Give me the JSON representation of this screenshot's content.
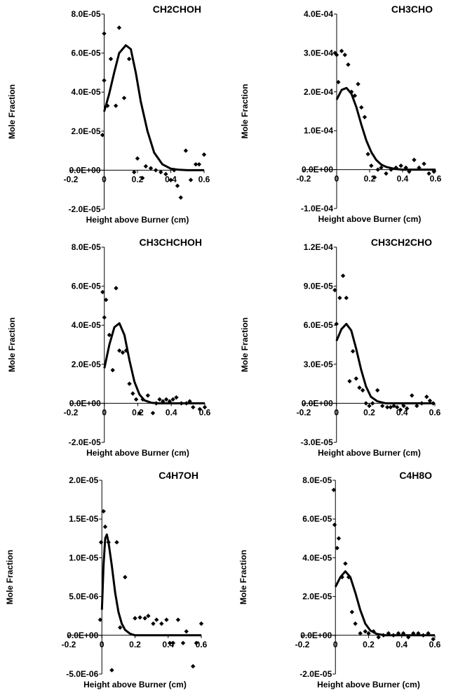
{
  "chart_data": [
    {
      "type": "scatter",
      "title": "CH2CHOH",
      "xlabel": "Height above Burner (cm)",
      "ylabel": "Mole Fraction",
      "xlim": [
        -0.2,
        0.6
      ],
      "ylim": [
        -2e-05,
        8e-05
      ],
      "xticks": [
        "-0.2",
        "0",
        "0.2",
        "0.4",
        "0.6"
      ],
      "yticks": [
        "-2.0E-05",
        "0.0E+00",
        "2.0E-05",
        "4.0E-05",
        "6.0E-05",
        "8.0E-05"
      ],
      "series": [
        {
          "kind": "points",
          "x": [
            -0.01,
            0.0,
            0.0,
            0.02,
            0.04,
            0.07,
            0.09,
            0.12,
            0.15,
            0.18,
            0.2,
            0.23,
            0.25,
            0.28,
            0.31,
            0.34,
            0.37,
            0.4,
            0.42,
            0.44,
            0.46,
            0.49,
            0.52,
            0.55,
            0.57,
            0.6
          ],
          "y": [
            1.8e-05,
            7e-05,
            4.6e-05,
            3.3e-05,
            5.7e-05,
            3.3e-05,
            7.3e-05,
            3.7e-05,
            5.7e-05,
            -1e-06,
            6e-06,
            -4e-06,
            2e-06,
            1e-06,
            0.0,
            -1e-06,
            -2e-06,
            -5e-06,
            0.0,
            -8e-06,
            -1.4e-05,
            1e-05,
            -5e-06,
            3e-06,
            3e-06,
            8e-06
          ]
        },
        {
          "kind": "fit",
          "x": [
            0.0,
            0.03,
            0.06,
            0.09,
            0.13,
            0.16,
            0.19,
            0.22,
            0.26,
            0.3,
            0.35,
            0.4,
            0.45,
            0.5,
            0.55,
            0.6
          ],
          "y": [
            3e-05,
            3.9e-05,
            5e-05,
            6e-05,
            6.4e-05,
            6.2e-05,
            5e-05,
            3.5e-05,
            2e-05,
            9e-06,
            3e-06,
            8e-07,
            2e-07,
            0.0,
            0.0,
            0.0
          ]
        }
      ]
    },
    {
      "type": "scatter",
      "title": "CH3CHO",
      "xlabel": "Height above Burner (cm)",
      "ylabel": "Mole Fraction",
      "xlim": [
        -0.2,
        0.6
      ],
      "ylim": [
        -0.0001,
        0.0004
      ],
      "xticks": [
        "-0.2",
        "0",
        "0.2",
        "0.4",
        "0.6"
      ],
      "yticks": [
        "-1.0E-04",
        "0.0E+00",
        "1.0E-04",
        "2.0E-04",
        "3.0E-04",
        "4.0E-04"
      ],
      "series": [
        {
          "kind": "points",
          "x": [
            -0.01,
            0.0,
            0.01,
            0.03,
            0.05,
            0.07,
            0.09,
            0.11,
            0.13,
            0.15,
            0.17,
            0.19,
            0.21,
            0.23,
            0.25,
            0.27,
            0.3,
            0.33,
            0.36,
            0.39,
            0.42,
            0.44,
            0.47,
            0.5,
            0.53,
            0.56,
            0.59
          ],
          "y": [
            0.0003,
            0.000295,
            0.000225,
            0.000305,
            0.000295,
            0.00027,
            0.0002,
            0.00019,
            0.00022,
            0.00016,
            0.000135,
            4e-05,
            1e-05,
            -2e-05,
            0.0,
            5e-06,
            -1e-05,
            0.0,
            5e-06,
            1e-05,
            5e-06,
            -5e-06,
            2.5e-05,
            5e-06,
            1.5e-05,
            -1e-05,
            -5e-06
          ]
        },
        {
          "kind": "fit",
          "x": [
            0.0,
            0.03,
            0.06,
            0.09,
            0.12,
            0.15,
            0.18,
            0.21,
            0.24,
            0.27,
            0.3,
            0.35,
            0.4,
            0.45,
            0.5,
            0.55,
            0.6
          ],
          "y": [
            0.00018,
            0.000205,
            0.00021,
            0.000195,
            0.00016,
            0.000115,
            7.5e-05,
            4.5e-05,
            2.5e-05,
            1.3e-05,
            7e-06,
            2e-06,
            0.0,
            0.0,
            0.0,
            0.0,
            0.0
          ]
        }
      ]
    },
    {
      "type": "scatter",
      "title": "CH3CHCHOH",
      "xlabel": "Height above Burner (cm)",
      "ylabel": "Mole Fraction",
      "xlim": [
        -0.2,
        0.6
      ],
      "ylim": [
        -2e-05,
        8e-05
      ],
      "xticks": [
        "-0.2",
        "0",
        "0.2",
        "0.4",
        "0.6"
      ],
      "yticks": [
        "-2.0E-05",
        "0.0E+00",
        "2.0E-05",
        "4.0E-05",
        "6.0E-05",
        "8.0E-05"
      ],
      "series": [
        {
          "kind": "points",
          "x": [
            -0.01,
            0.0,
            0.01,
            0.03,
            0.05,
            0.07,
            0.09,
            0.11,
            0.13,
            0.15,
            0.17,
            0.19,
            0.21,
            0.23,
            0.26,
            0.29,
            0.31,
            0.33,
            0.35,
            0.37,
            0.39,
            0.41,
            0.43,
            0.46,
            0.49,
            0.51,
            0.53,
            0.57,
            0.6
          ],
          "y": [
            5.7e-05,
            4.4e-05,
            5.3e-05,
            3.5e-05,
            1.7e-05,
            5.9e-05,
            2.7e-05,
            2.6e-05,
            2.7e-05,
            1e-05,
            5e-06,
            2e-06,
            -5e-06,
            2e-06,
            4e-06,
            -5e-06,
            0.0,
            2e-06,
            1e-06,
            2e-06,
            1e-06,
            2e-06,
            3e-06,
            0.0,
            0.0,
            1e-06,
            -2e-06,
            -3e-06,
            -2e-06
          ]
        },
        {
          "kind": "fit",
          "x": [
            0.0,
            0.03,
            0.06,
            0.09,
            0.12,
            0.15,
            0.18,
            0.21,
            0.24,
            0.28,
            0.32,
            0.4,
            0.5,
            0.6
          ],
          "y": [
            1.8e-05,
            3e-05,
            3.9e-05,
            4.1e-05,
            3.5e-05,
            2.2e-05,
            1.1e-05,
            4.5e-06,
            1.5e-06,
            3e-07,
            0.0,
            0.0,
            0.0,
            0.0
          ]
        }
      ]
    },
    {
      "type": "scatter",
      "title": "CH3CH2CHO",
      "xlabel": "Height above Burner (cm)",
      "ylabel": "Mole Fraction",
      "xlim": [
        -0.2,
        0.6
      ],
      "ylim": [
        -3e-05,
        0.00012
      ],
      "xticks": [
        "-0.2",
        "0",
        "0.2",
        "0.4",
        "0.6"
      ],
      "yticks": [
        "-3.0E-05",
        "0.0E+00",
        "3.0E-05",
        "6.0E-05",
        "9.0E-05",
        "1.2E-04"
      ],
      "series": [
        {
          "kind": "points",
          "x": [
            -0.01,
            0.0,
            0.02,
            0.04,
            0.06,
            0.08,
            0.1,
            0.12,
            0.14,
            0.16,
            0.18,
            0.2,
            0.22,
            0.25,
            0.28,
            0.31,
            0.33,
            0.35,
            0.37,
            0.39,
            0.41,
            0.43,
            0.46,
            0.49,
            0.52,
            0.55,
            0.57,
            0.59
          ],
          "y": [
            8.7e-05,
            6.1e-05,
            8.1e-05,
            9.8e-05,
            8.1e-05,
            1.7e-05,
            4e-05,
            1.9e-05,
            1.2e-05,
            1e-05,
            0.0,
            -2e-06,
            0.0,
            1e-05,
            -2e-06,
            -3e-06,
            -3e-06,
            -2e-06,
            -3e-06,
            -5e-06,
            -2e-06,
            -4e-06,
            6e-06,
            -2e-06,
            0.0,
            5e-06,
            2e-06,
            0.0
          ]
        },
        {
          "kind": "fit",
          "x": [
            0.0,
            0.03,
            0.06,
            0.09,
            0.12,
            0.15,
            0.18,
            0.21,
            0.25,
            0.3,
            0.35,
            0.4,
            0.5,
            0.6
          ],
          "y": [
            4.8e-05,
            5.7e-05,
            6.1e-05,
            5.6e-05,
            4.2e-05,
            2.6e-05,
            1.3e-05,
            5e-06,
            1.5e-06,
            0.0,
            0.0,
            0.0,
            0.0,
            0.0
          ]
        }
      ]
    },
    {
      "type": "scatter",
      "title": "C4H7OH",
      "xlabel": "Height above Burner (cm)",
      "ylabel": "Mole Fraction",
      "xlim": [
        -0.2,
        0.6
      ],
      "ylim": [
        -5e-06,
        2e-05
      ],
      "xticks": [
        "-0.2",
        "0",
        "0.2",
        "0.4",
        "0.6"
      ],
      "yticks": [
        "-5.0E-06",
        "0.0E+00",
        "5.0E-06",
        "1.0E-05",
        "1.5E-05",
        "2.0E-05"
      ],
      "series": [
        {
          "kind": "points",
          "x": [
            -0.01,
            -0.005,
            0.01,
            0.02,
            0.04,
            0.06,
            0.09,
            0.11,
            0.14,
            0.2,
            0.23,
            0.26,
            0.28,
            0.31,
            0.33,
            0.36,
            0.39,
            0.41,
            0.43,
            0.46,
            0.49,
            0.51,
            0.55,
            0.57,
            0.6
          ],
          "y": [
            2e-06,
            1.2e-05,
            1.6e-05,
            1.4e-05,
            1.2e-05,
            -4.5e-06,
            1.2e-05,
            1e-06,
            7.5e-06,
            2.2e-06,
            2.3e-06,
            2.2e-06,
            2.5e-06,
            1.5e-06,
            2e-06,
            1.5e-06,
            2e-06,
            -1e-06,
            -1e-06,
            2e-06,
            -1e-06,
            5e-07,
            -4e-06,
            -1e-06,
            1.5e-06
          ]
        },
        {
          "kind": "fit",
          "x": [
            0.0,
            0.01,
            0.02,
            0.03,
            0.04,
            0.06,
            0.08,
            0.1,
            0.12,
            0.14,
            0.17,
            0.2,
            0.25,
            0.3,
            0.4,
            0.5,
            0.6
          ],
          "y": [
            3.3e-06,
            9e-06,
            1.25e-05,
            1.3e-05,
            1.2e-05,
            9e-06,
            5.5e-06,
            3e-06,
            1.5e-06,
            7e-07,
            2e-07,
            0.0,
            0.0,
            0.0,
            0.0,
            0.0,
            0.0
          ]
        }
      ]
    },
    {
      "type": "scatter",
      "title": "C4H8O",
      "xlabel": "Height above Burner (cm)",
      "ylabel": "Mole Fraction",
      "xlim": [
        -0.2,
        0.6
      ],
      "ylim": [
        -2e-05,
        8e-05
      ],
      "xticks": [
        "-0.2",
        "0",
        "0.2",
        "0.4",
        "0.6"
      ],
      "yticks": [
        "-2.0E-05",
        "0.0E+00",
        "2.0E-05",
        "4.0E-05",
        "6.0E-05",
        "8.0E-05"
      ],
      "series": [
        {
          "kind": "points",
          "x": [
            -0.01,
            -0.005,
            0.01,
            0.02,
            0.04,
            0.06,
            0.08,
            0.1,
            0.12,
            0.15,
            0.18,
            0.2,
            0.23,
            0.26,
            0.29,
            0.32,
            0.35,
            0.38,
            0.41,
            0.44,
            0.47,
            0.5,
            0.53,
            0.56,
            0.59
          ],
          "y": [
            7.5e-05,
            5.7e-05,
            4.5e-05,
            5e-05,
            3e-05,
            3.7e-05,
            3e-05,
            1.2e-05,
            6e-06,
            1e-06,
            2e-06,
            1e-06,
            2e-06,
            -1e-06,
            0.0,
            1e-06,
            0.0,
            1e-06,
            1e-06,
            -1e-06,
            1e-06,
            1e-06,
            0.0,
            1e-06,
            -2e-06
          ]
        },
        {
          "kind": "fit",
          "x": [
            0.0,
            0.03,
            0.06,
            0.09,
            0.12,
            0.15,
            0.18,
            0.21,
            0.25,
            0.3,
            0.4,
            0.5,
            0.6
          ],
          "y": [
            2.5e-05,
            3e-05,
            3.3e-05,
            3e-05,
            2.2e-05,
            1.3e-05,
            6e-06,
            2.5e-06,
            7e-07,
            0.0,
            0.0,
            0.0,
            0.0
          ]
        }
      ]
    }
  ]
}
